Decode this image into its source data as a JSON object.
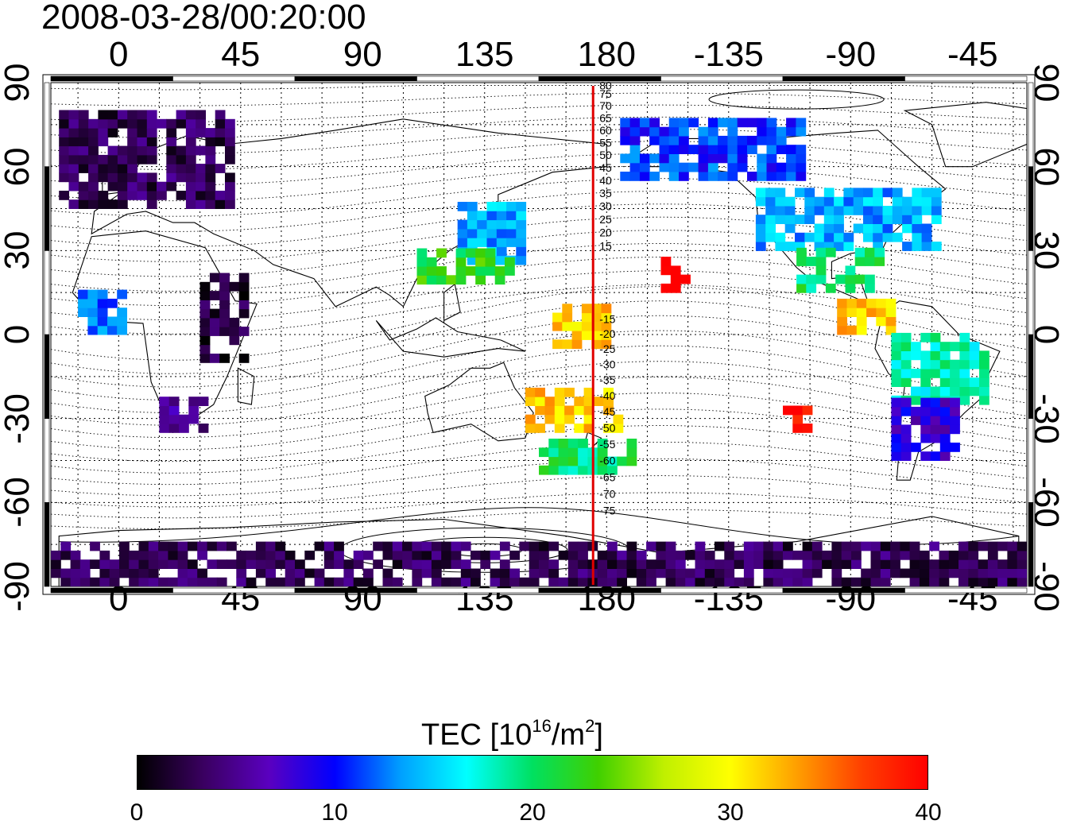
{
  "timestamp": "2008-03-28/00:20:00",
  "longitude_ticks": [
    "0",
    "45",
    "90",
    "135",
    "180",
    "-135",
    "-90",
    "-45"
  ],
  "latitude_ticks": [
    "90",
    "60",
    "30",
    "0",
    "-30",
    "-60",
    "-90"
  ],
  "magnetic_latitude_labels": [
    "80",
    "75",
    "70",
    "65",
    "60",
    "55",
    "50",
    "45",
    "40",
    "35",
    "30",
    "25",
    "20",
    "15",
    "-15",
    "-20",
    "-25",
    "-30",
    "-35",
    "-40",
    "-45",
    "-50",
    "-55",
    "-60",
    "-65",
    "-70",
    "-75"
  ],
  "colorbar": {
    "title_main": "TEC  [10",
    "title_exp": "16",
    "title_unit": "/m",
    "title_unit_exp": "2",
    "title_close": "]",
    "ticks": [
      "0",
      "10",
      "20",
      "30",
      "40"
    ],
    "min": 0,
    "max": 40,
    "colors": [
      "#000000",
      "#3a0060",
      "#5a00c0",
      "#0000ff",
      "#00a0ff",
      "#00ffff",
      "#00e060",
      "#40d000",
      "#c0f000",
      "#ffff00",
      "#ffa000",
      "#ff4000",
      "#ff0000"
    ]
  },
  "meridian_marker": {
    "longitude": 175,
    "color": "#e00000"
  },
  "map_extent": {
    "lon_min": -25,
    "lon_max": 335,
    "lat_min": -90,
    "lat_max": 90
  },
  "chart_data": {
    "type": "heatmap",
    "title": "2008-03-28/00:20:00",
    "xlabel": "",
    "ylabel": "",
    "colorbar_label": "TEC [10^16/m^2]",
    "value_range": [
      0,
      40
    ],
    "regions": [
      {
        "lon_range": [
          -22,
          40
        ],
        "lat_range": [
          45,
          80
        ],
        "tec": 3
      },
      {
        "lon_range": [
          30,
          45
        ],
        "lat_range": [
          -10,
          20
        ],
        "tec": 2
      },
      {
        "lon_range": [
          -15,
          0
        ],
        "lat_range": [
          0,
          15
        ],
        "tec": 12
      },
      {
        "lon_range": [
          15,
          30
        ],
        "lat_range": [
          -35,
          -25
        ],
        "tec": 5
      },
      {
        "lon_range": [
          125,
          150
        ],
        "lat_range": [
          25,
          45
        ],
        "tec": 14
      },
      {
        "lon_range": [
          110,
          145
        ],
        "lat_range": [
          18,
          28
        ],
        "tec": 22
      },
      {
        "lon_range": [
          160,
          180
        ],
        "lat_range": [
          -5,
          10
        ],
        "tec": 32
      },
      {
        "lon_range": [
          150,
          185
        ],
        "lat_range": [
          -35,
          -20
        ],
        "tec": 32
      },
      {
        "lon_range": [
          155,
          190
        ],
        "lat_range": [
          -50,
          -40
        ],
        "tec": 20
      },
      {
        "lon_range": [
          200,
          210
        ],
        "lat_range": [
          15,
          25
        ],
        "tec": 40
      },
      {
        "lon_range": [
          245,
          255
        ],
        "lat_range": [
          -35,
          -28
        ],
        "tec": 40
      },
      {
        "lon_range": [
          185,
          250
        ],
        "lat_range": [
          55,
          75
        ],
        "tec": 11
      },
      {
        "lon_range": [
          235,
          300
        ],
        "lat_range": [
          30,
          50
        ],
        "tec": 14
      },
      {
        "lon_range": [
          250,
          280
        ],
        "lat_range": [
          15,
          30
        ],
        "tec": 20
      },
      {
        "lon_range": [
          265,
          285
        ],
        "lat_range": [
          0,
          10
        ],
        "tec": 32
      },
      {
        "lon_range": [
          285,
          320
        ],
        "lat_range": [
          -25,
          0
        ],
        "tec": 18
      },
      {
        "lon_range": [
          285,
          310
        ],
        "lat_range": [
          -45,
          -25
        ],
        "tec": 8
      },
      {
        "lon_range": [
          -25,
          335
        ],
        "lat_range": [
          -90,
          -75
        ],
        "tec": 3
      }
    ]
  }
}
